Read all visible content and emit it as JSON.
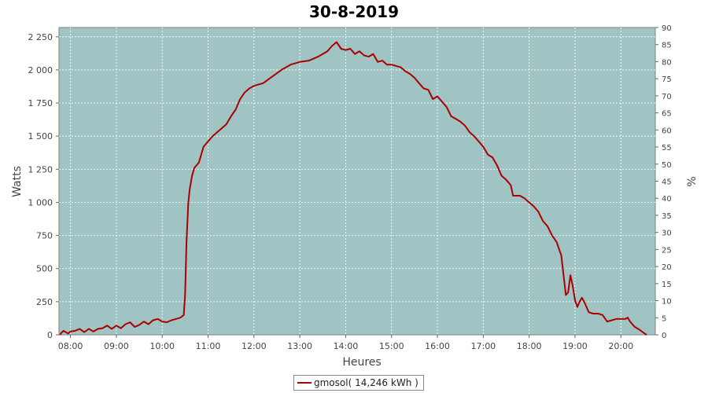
{
  "chart_data": {
    "type": "line",
    "title": "30-8-2019",
    "xlabel": "Heures",
    "ylabel": "Watts",
    "y2label": "%",
    "xlim": [
      7.75,
      20.75
    ],
    "ylim": [
      0,
      2320
    ],
    "y2lim": [
      0,
      90
    ],
    "x_ticks": [
      {
        "v": 8,
        "label": "08:00"
      },
      {
        "v": 9,
        "label": "09:00"
      },
      {
        "v": 10,
        "label": "10:00"
      },
      {
        "v": 11,
        "label": "11:00"
      },
      {
        "v": 12,
        "label": "12:00"
      },
      {
        "v": 13,
        "label": "13:00"
      },
      {
        "v": 14,
        "label": "14:00"
      },
      {
        "v": 15,
        "label": "15:00"
      },
      {
        "v": 16,
        "label": "16:00"
      },
      {
        "v": 17,
        "label": "17:00"
      },
      {
        "v": 18,
        "label": "18:00"
      },
      {
        "v": 19,
        "label": "19:00"
      },
      {
        "v": 20,
        "label": "20:00"
      }
    ],
    "y_ticks": [
      {
        "v": 0,
        "label": "0"
      },
      {
        "v": 250,
        "label": "250"
      },
      {
        "v": 500,
        "label": "500"
      },
      {
        "v": 750,
        "label": "750"
      },
      {
        "v": 1000,
        "label": "1 000"
      },
      {
        "v": 1250,
        "label": "1 250"
      },
      {
        "v": 1500,
        "label": "1 500"
      },
      {
        "v": 1750,
        "label": "1 750"
      },
      {
        "v": 2000,
        "label": "2 000"
      },
      {
        "v": 2250,
        "label": "2 250"
      }
    ],
    "y2_ticks": [
      {
        "v": 0,
        "label": "0"
      },
      {
        "v": 5,
        "label": "5"
      },
      {
        "v": 10,
        "label": "10"
      },
      {
        "v": 15,
        "label": "15"
      },
      {
        "v": 20,
        "label": "20"
      },
      {
        "v": 25,
        "label": "25"
      },
      {
        "v": 30,
        "label": "30"
      },
      {
        "v": 35,
        "label": "35"
      },
      {
        "v": 40,
        "label": "40"
      },
      {
        "v": 45,
        "label": "45"
      },
      {
        "v": 50,
        "label": "50"
      },
      {
        "v": 55,
        "label": "55"
      },
      {
        "v": 60,
        "label": "60"
      },
      {
        "v": 65,
        "label": "65"
      },
      {
        "v": 70,
        "label": "70"
      },
      {
        "v": 75,
        "label": "75"
      },
      {
        "v": 80,
        "label": "80"
      },
      {
        "v": 85,
        "label": "85"
      },
      {
        "v": 90,
        "label": "90"
      }
    ],
    "grid": true,
    "legend_position": "bottom-center",
    "colors": {
      "plot_background": "#a0c4c4",
      "series_line": "#aa0000",
      "grid": "#ffffff"
    },
    "series": [
      {
        "name": "gmosol( 14,246 kWh )",
        "points": [
          [
            7.77,
            0
          ],
          [
            7.8,
            15
          ],
          [
            7.85,
            30
          ],
          [
            7.9,
            20
          ],
          [
            7.95,
            10
          ],
          [
            8.0,
            25
          ],
          [
            8.1,
            30
          ],
          [
            8.2,
            45
          ],
          [
            8.3,
            20
          ],
          [
            8.4,
            45
          ],
          [
            8.5,
            25
          ],
          [
            8.6,
            45
          ],
          [
            8.7,
            50
          ],
          [
            8.8,
            70
          ],
          [
            8.9,
            45
          ],
          [
            9.0,
            70
          ],
          [
            9.1,
            50
          ],
          [
            9.2,
            80
          ],
          [
            9.3,
            95
          ],
          [
            9.4,
            60
          ],
          [
            9.5,
            75
          ],
          [
            9.6,
            100
          ],
          [
            9.7,
            80
          ],
          [
            9.8,
            110
          ],
          [
            9.9,
            120
          ],
          [
            10.0,
            100
          ],
          [
            10.1,
            95
          ],
          [
            10.2,
            110
          ],
          [
            10.3,
            120
          ],
          [
            10.4,
            130
          ],
          [
            10.47,
            150
          ],
          [
            10.5,
            300
          ],
          [
            10.53,
            700
          ],
          [
            10.57,
            1000
          ],
          [
            10.6,
            1100
          ],
          [
            10.65,
            1200
          ],
          [
            10.7,
            1260
          ],
          [
            10.8,
            1300
          ],
          [
            10.9,
            1420
          ],
          [
            11.0,
            1460
          ],
          [
            11.1,
            1500
          ],
          [
            11.2,
            1530
          ],
          [
            11.3,
            1560
          ],
          [
            11.4,
            1590
          ],
          [
            11.5,
            1650
          ],
          [
            11.6,
            1700
          ],
          [
            11.7,
            1780
          ],
          [
            11.8,
            1830
          ],
          [
            11.9,
            1860
          ],
          [
            12.0,
            1880
          ],
          [
            12.2,
            1900
          ],
          [
            12.4,
            1950
          ],
          [
            12.6,
            2000
          ],
          [
            12.8,
            2040
          ],
          [
            13.0,
            2060
          ],
          [
            13.2,
            2070
          ],
          [
            13.4,
            2100
          ],
          [
            13.6,
            2140
          ],
          [
            13.7,
            2180
          ],
          [
            13.8,
            2210
          ],
          [
            13.9,
            2160
          ],
          [
            14.0,
            2150
          ],
          [
            14.1,
            2160
          ],
          [
            14.2,
            2120
          ],
          [
            14.3,
            2140
          ],
          [
            14.4,
            2110
          ],
          [
            14.5,
            2100
          ],
          [
            14.6,
            2120
          ],
          [
            14.7,
            2060
          ],
          [
            14.8,
            2070
          ],
          [
            14.9,
            2040
          ],
          [
            15.0,
            2040
          ],
          [
            15.1,
            2030
          ],
          [
            15.2,
            2020
          ],
          [
            15.3,
            1990
          ],
          [
            15.4,
            1970
          ],
          [
            15.5,
            1940
          ],
          [
            15.6,
            1900
          ],
          [
            15.7,
            1860
          ],
          [
            15.8,
            1850
          ],
          [
            15.9,
            1780
          ],
          [
            16.0,
            1800
          ],
          [
            16.1,
            1760
          ],
          [
            16.2,
            1720
          ],
          [
            16.3,
            1650
          ],
          [
            16.4,
            1630
          ],
          [
            16.5,
            1610
          ],
          [
            16.6,
            1580
          ],
          [
            16.7,
            1530
          ],
          [
            16.8,
            1500
          ],
          [
            16.9,
            1460
          ],
          [
            17.0,
            1420
          ],
          [
            17.1,
            1360
          ],
          [
            17.2,
            1340
          ],
          [
            17.3,
            1280
          ],
          [
            17.4,
            1200
          ],
          [
            17.5,
            1170
          ],
          [
            17.6,
            1130
          ],
          [
            17.65,
            1050
          ],
          [
            17.7,
            1050
          ],
          [
            17.8,
            1050
          ],
          [
            17.9,
            1030
          ],
          [
            18.0,
            1000
          ],
          [
            18.1,
            970
          ],
          [
            18.2,
            930
          ],
          [
            18.3,
            860
          ],
          [
            18.4,
            820
          ],
          [
            18.5,
            750
          ],
          [
            18.6,
            700
          ],
          [
            18.7,
            600
          ],
          [
            18.75,
            450
          ],
          [
            18.8,
            300
          ],
          [
            18.85,
            320
          ],
          [
            18.9,
            450
          ],
          [
            18.95,
            370
          ],
          [
            19.0,
            260
          ],
          [
            19.05,
            210
          ],
          [
            19.1,
            250
          ],
          [
            19.15,
            280
          ],
          [
            19.2,
            250
          ],
          [
            19.3,
            170
          ],
          [
            19.4,
            160
          ],
          [
            19.5,
            160
          ],
          [
            19.6,
            150
          ],
          [
            19.7,
            100
          ],
          [
            19.8,
            110
          ],
          [
            19.9,
            120
          ],
          [
            20.0,
            120
          ],
          [
            20.1,
            120
          ],
          [
            20.15,
            130
          ],
          [
            20.2,
            100
          ],
          [
            20.3,
            60
          ],
          [
            20.4,
            40
          ],
          [
            20.5,
            15
          ],
          [
            20.56,
            0
          ]
        ]
      }
    ]
  }
}
